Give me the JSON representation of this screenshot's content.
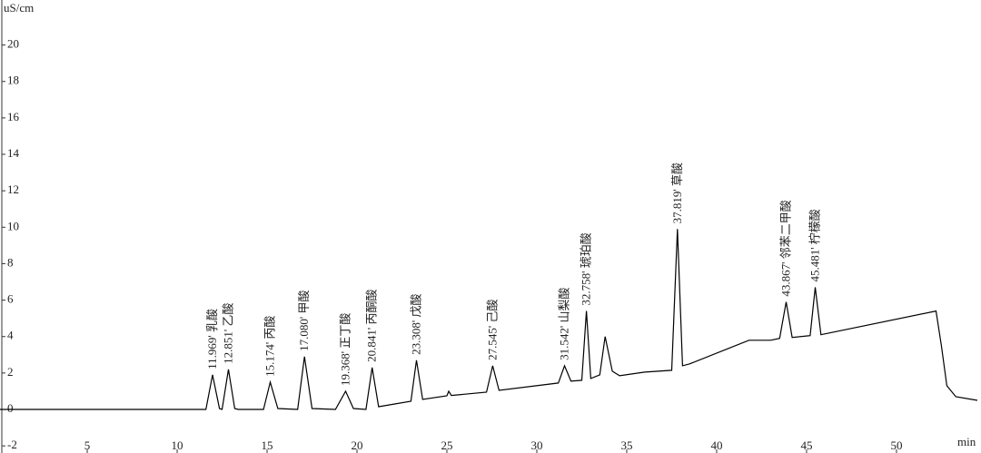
{
  "chart_data": {
    "type": "line",
    "y_label": "uS/cm",
    "x_label": "min",
    "x": [
      0,
      11.6,
      11.969,
      12.35,
      12.5,
      12.851,
      13.2,
      13.4,
      14.8,
      15.174,
      15.6,
      16.7,
      17.08,
      17.5,
      18.8,
      19.368,
      19.8,
      20.5,
      20.841,
      21.2,
      23.0,
      23.308,
      23.65,
      25.0,
      25.1,
      25.25,
      27.2,
      27.545,
      27.9,
      31.2,
      31.542,
      31.9,
      32.5,
      32.758,
      33.0,
      33.5,
      33.8,
      34.2,
      34.6,
      36.0,
      37.5,
      37.819,
      38.1,
      38.5,
      41.8,
      43.0,
      43.5,
      43.867,
      44.2,
      45.2,
      45.481,
      45.8,
      52.2,
      52.5,
      52.8,
      53.3,
      54.5
    ],
    "series": [
      {
        "color": "#000000",
        "values": [
          0,
          0,
          1.9,
          0.05,
          0,
          2.2,
          0.05,
          0,
          0,
          1.5,
          0.05,
          0,
          2.9,
          0.05,
          0,
          1.0,
          0.05,
          0,
          2.3,
          0.15,
          0.45,
          2.7,
          0.55,
          0.75,
          1.0,
          0.77,
          0.95,
          2.4,
          1.05,
          1.45,
          2.4,
          1.55,
          1.6,
          5.4,
          1.7,
          1.9,
          4.0,
          2.1,
          1.85,
          2.05,
          2.15,
          9.9,
          2.4,
          2.5,
          3.8,
          3.8,
          3.9,
          5.9,
          3.95,
          4.05,
          6.7,
          4.1,
          5.4,
          3.5,
          1.3,
          0.7,
          0.5
        ]
      }
    ],
    "annotations": [
      {
        "text": "11.969'  乳酸",
        "x": 11.969,
        "y": 1.9
      },
      {
        "text": "12.851'  乙酸",
        "x": 12.851,
        "y": 2.2
      },
      {
        "text": "15.174'  丙酸",
        "x": 15.174,
        "y": 1.5
      },
      {
        "text": "17.080'  甲酸",
        "x": 17.08,
        "y": 2.9
      },
      {
        "text": "19.368'  正丁酸",
        "x": 19.368,
        "y": 1.0
      },
      {
        "text": "20.841'  丙酮酸",
        "x": 20.841,
        "y": 2.3
      },
      {
        "text": "23.308'  戊酸",
        "x": 23.308,
        "y": 2.7
      },
      {
        "text": "27.545'  己酸",
        "x": 27.545,
        "y": 2.4
      },
      {
        "text": "31.542'  山梨酸",
        "x": 31.542,
        "y": 2.4
      },
      {
        "text": "32.758'  琥珀酸",
        "x": 32.758,
        "y": 5.4
      },
      {
        "text": "37.819'  草酸",
        "x": 37.819,
        "y": 9.9
      },
      {
        "text": "43.867'  邻苯二甲酸",
        "x": 43.867,
        "y": 5.9
      },
      {
        "text": "45.481'  柠檬酸",
        "x": 45.481,
        "y": 6.7
      }
    ],
    "xlim": [
      0.25,
      54.7
    ],
    "xticks": [
      5,
      10,
      15,
      20,
      25,
      30,
      35,
      40,
      45,
      50
    ],
    "ylim": [
      -2.39,
      22.47
    ],
    "yticks": [
      -2,
      0,
      2,
      4,
      6,
      8,
      10,
      12,
      14,
      16,
      18,
      20
    ],
    "grid": false
  }
}
